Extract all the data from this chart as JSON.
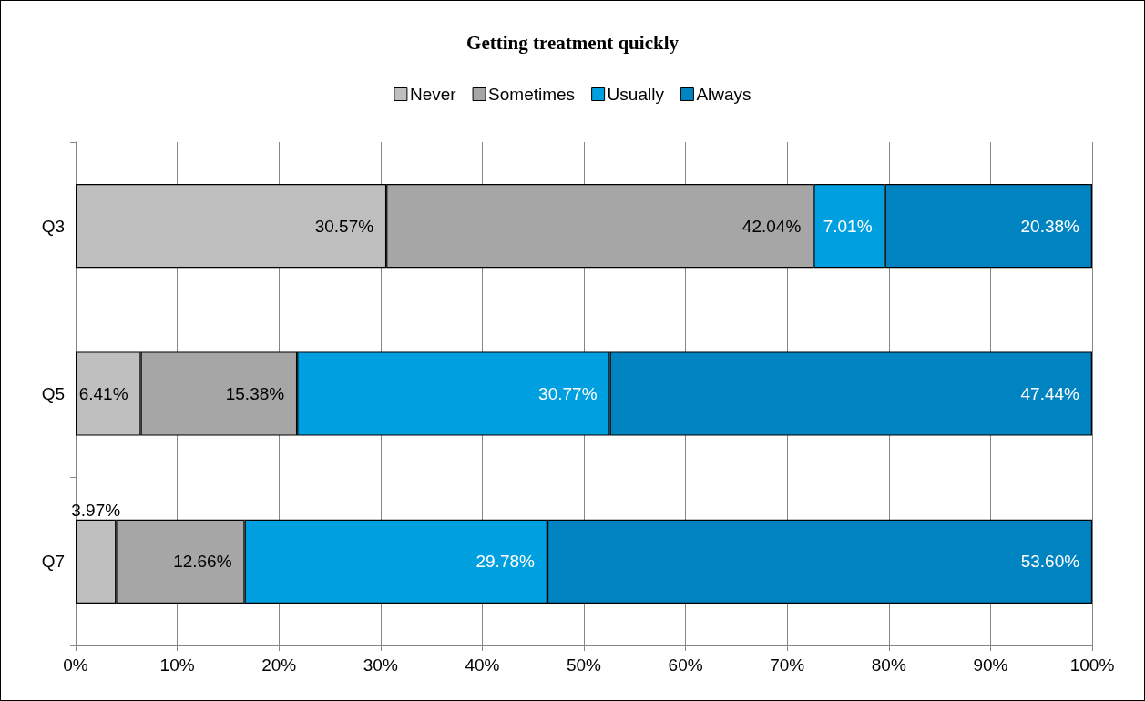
{
  "chart_data": {
    "type": "bar",
    "title": "Getting treatment quickly",
    "orientation": "horizontal",
    "stacked": true,
    "categories": [
      "Q3",
      "Q5",
      "Q7"
    ],
    "series": [
      {
        "name": "Never",
        "color": "#bfbfbf",
        "values": [
          30.57,
          6.41,
          3.97
        ],
        "value_labels": [
          "30.57%",
          "6.41%",
          "3.97%"
        ]
      },
      {
        "name": "Sometimes",
        "color": "#a6a6a6",
        "values": [
          42.04,
          15.38,
          12.66
        ],
        "value_labels": [
          "42.04%",
          "15.38%",
          "12.66%"
        ]
      },
      {
        "name": "Usually",
        "color": "#009fdf",
        "values": [
          7.01,
          30.77,
          29.78
        ],
        "value_labels": [
          "7.01%",
          "30.77%",
          "29.78%"
        ]
      },
      {
        "name": "Always",
        "color": "#0083c1",
        "values": [
          20.38,
          47.44,
          53.6
        ],
        "value_labels": [
          "20.38%",
          "47.44%",
          "53.60%"
        ]
      }
    ],
    "xlim": [
      0,
      100
    ],
    "xticks": [
      {
        "value": 0,
        "label": "0%"
      },
      {
        "value": 10,
        "label": "10%"
      },
      {
        "value": 20,
        "label": "20%"
      },
      {
        "value": 30,
        "label": "30%"
      },
      {
        "value": 40,
        "label": "40%"
      },
      {
        "value": 50,
        "label": "50%"
      },
      {
        "value": 60,
        "label": "60%"
      },
      {
        "value": 70,
        "label": "70%"
      },
      {
        "value": 80,
        "label": "80%"
      },
      {
        "value": 90,
        "label": "90%"
      },
      {
        "value": 100,
        "label": "100%"
      }
    ],
    "grid": "x",
    "legend": "top"
  }
}
